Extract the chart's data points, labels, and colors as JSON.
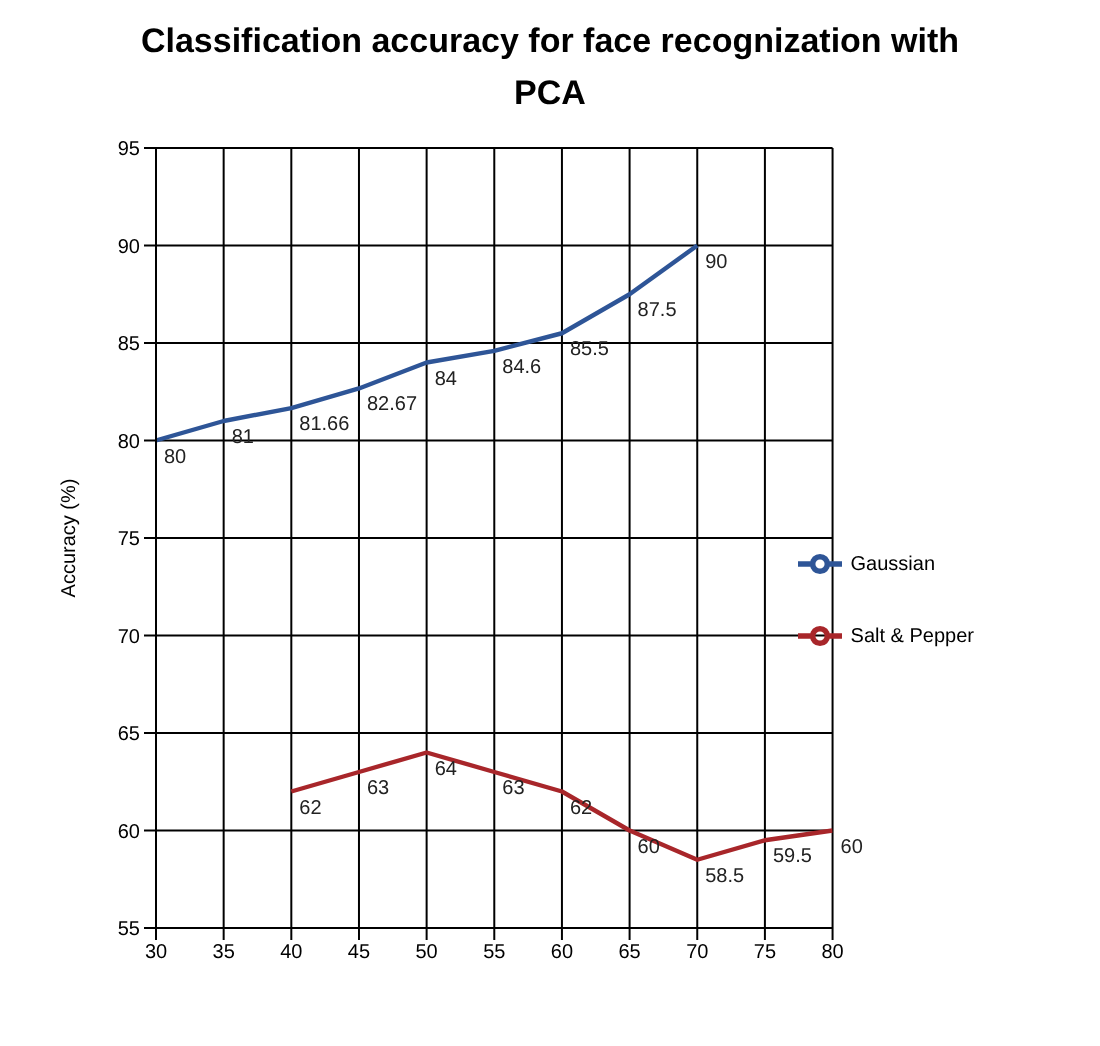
{
  "chart_data": {
    "type": "line",
    "title": "Classification accuracy for face recognization with PCA",
    "ylabel": "Accuracy (%)",
    "x": [
      30,
      35,
      40,
      45,
      50,
      55,
      60,
      65,
      70
    ],
    "series": [
      {
        "name": "Gaussian",
        "color": "#2e5597",
        "values": [
          80,
          81,
          81.66,
          82.67,
          84,
          84.6,
          85.5,
          87.5,
          90
        ]
      },
      {
        "name": "Salt & Pepper",
        "color": "#a8262a",
        "x": [
          40,
          45,
          50,
          55,
          60,
          65,
          70,
          75,
          80
        ],
        "values": [
          62,
          63,
          64,
          63,
          62,
          60,
          58.5,
          59.5,
          60
        ]
      }
    ],
    "xlim": [
      30,
      80
    ],
    "xticks": [
      30,
      35,
      40,
      45,
      50,
      55,
      60,
      65,
      70,
      75,
      80
    ],
    "ylim": [
      55,
      95
    ],
    "yticks": [
      55,
      60,
      65,
      70,
      75,
      80,
      85,
      90,
      95
    ],
    "grid": true,
    "legend": "right",
    "marker": "none",
    "line_style": "solid",
    "data_labels": true
  }
}
